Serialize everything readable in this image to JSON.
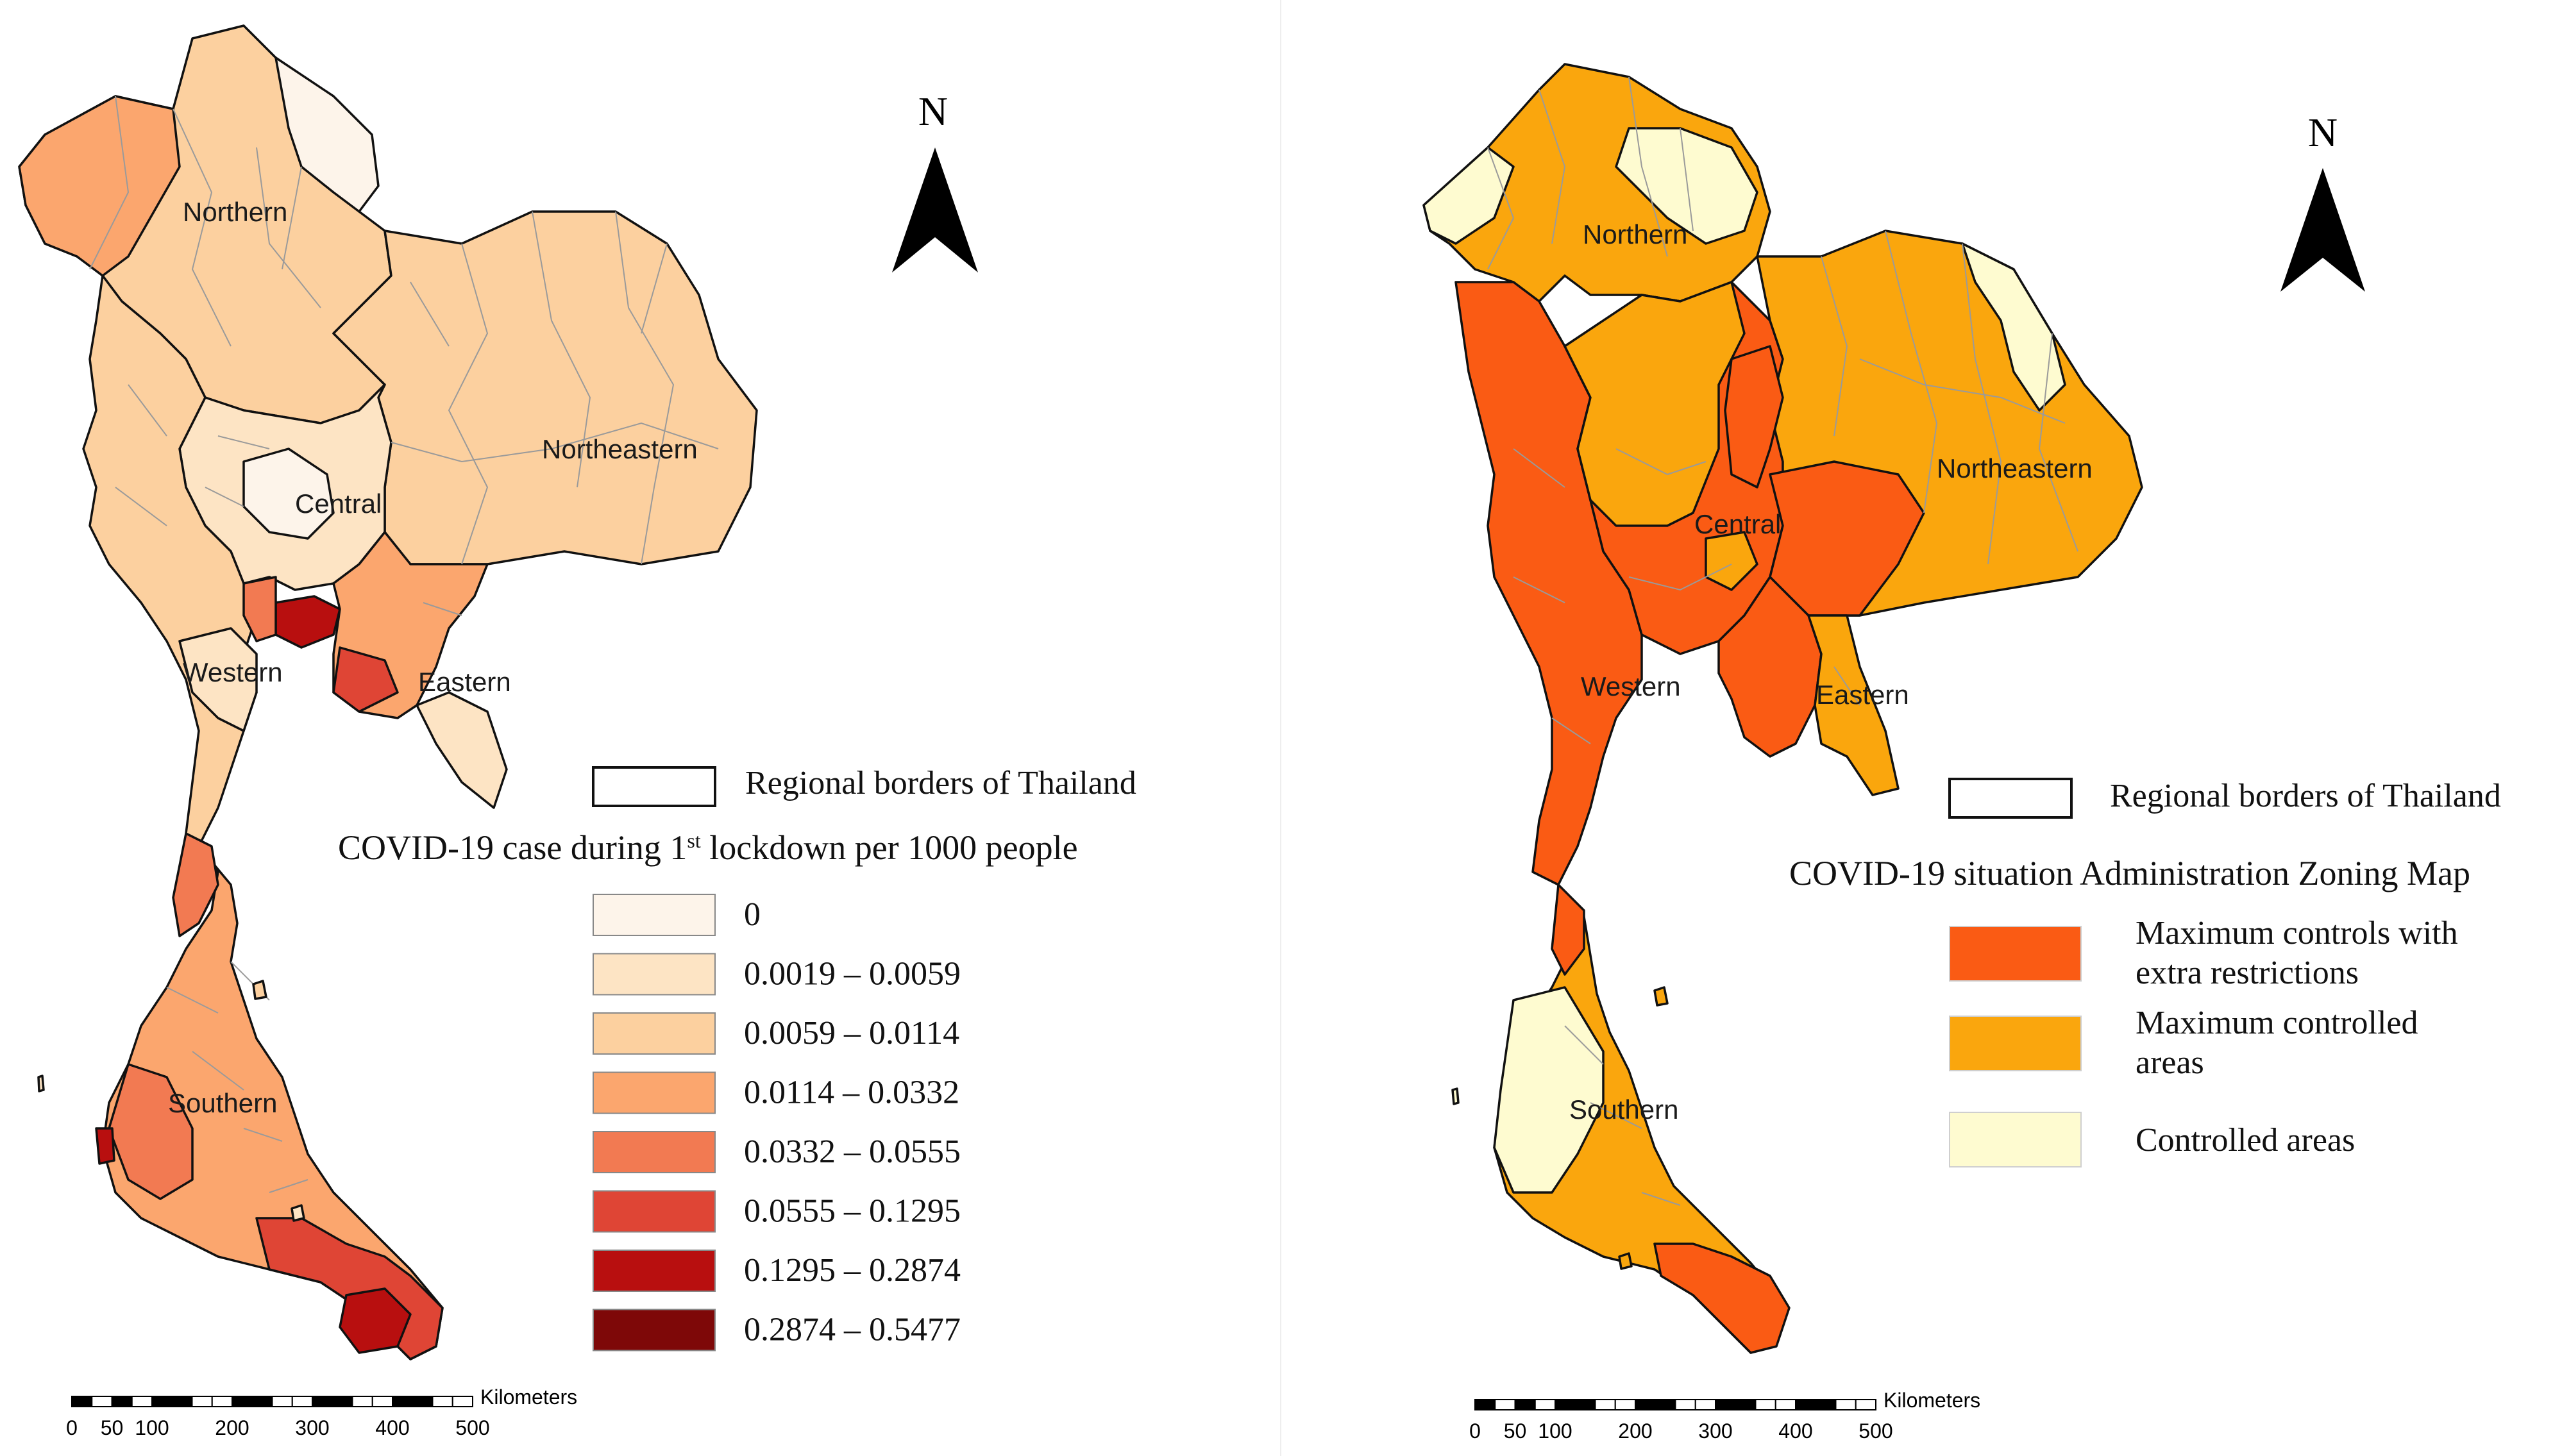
{
  "colors": {
    "c0": "#fdf4ea",
    "c1": "#fde4c4",
    "c2": "#fcd09f",
    "c3": "#fba66e",
    "c4": "#f27a52",
    "c5": "#df4535",
    "c6": "#b80f0f",
    "c7": "#7e0808",
    "zone_max_extra": "#fa5b14",
    "zone_max": "#faa60d",
    "zone_controlled": "#fefbd0"
  },
  "left_map": {
    "region_labels": [
      "Northern",
      "Central",
      "Northeastern",
      "Western",
      "Eastern",
      "Southern"
    ],
    "legend_border_label": "Regional borders of Thailand",
    "legend_title_main": "COVID-19 case during 1",
    "legend_title_sup": "st",
    "legend_title_tail": " lockdown per 1000 people",
    "legend_items": [
      {
        "label": "0",
        "color_key": "c0"
      },
      {
        "label": "0.0019 – 0.0059",
        "color_key": "c1"
      },
      {
        "label": "0.0059 – 0.0114",
        "color_key": "c2"
      },
      {
        "label": "0.0114 – 0.0332",
        "color_key": "c3"
      },
      {
        "label": "0.0332 – 0.0555",
        "color_key": "c4"
      },
      {
        "label": "0.0555 – 0.1295",
        "color_key": "c5"
      },
      {
        "label": "0.1295 – 0.2874",
        "color_key": "c6"
      },
      {
        "label": "0.2874 – 0.5477",
        "color_key": "c7"
      }
    ],
    "north_arrow": "N",
    "scale_unit": "Kilometers",
    "scale_ticks": [
      "0",
      "50",
      "100",
      "200",
      "300",
      "400",
      "500"
    ]
  },
  "right_map": {
    "region_labels": [
      "Northern",
      "Northeastern",
      "Central",
      "Western",
      "Eastern",
      "Southern"
    ],
    "legend_border_label": "Regional borders of Thailand",
    "legend_title": "COVID-19 situation Administration Zoning Map",
    "legend_items": [
      {
        "label_lines": [
          "Maximum controls with",
          "extra restrictions"
        ],
        "color_key": "zone_max_extra"
      },
      {
        "label_lines": [
          "Maximum controlled",
          "areas"
        ],
        "color_key": "zone_max"
      },
      {
        "label_lines": [
          "Controlled areas"
        ],
        "color_key": "zone_controlled"
      }
    ],
    "north_arrow": "N",
    "scale_unit": "Kilometers",
    "scale_ticks": [
      "0",
      "50",
      "100",
      "200",
      "300",
      "400",
      "500"
    ]
  }
}
